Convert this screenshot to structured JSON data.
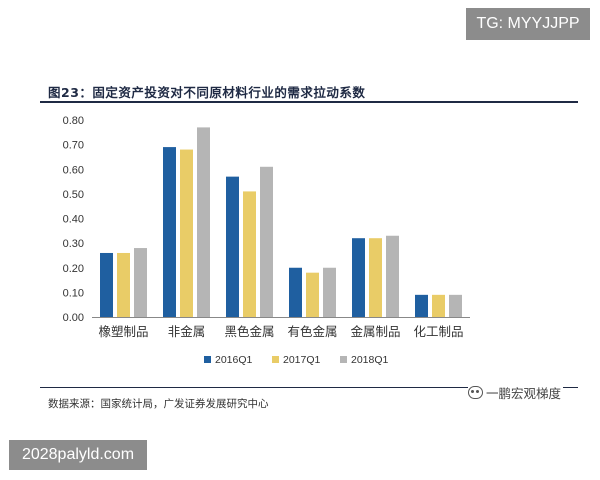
{
  "overlay": {
    "top_badge": "TG: MYYJJPP",
    "bottom_badge": "2028palyld.com"
  },
  "figure": {
    "title": "图23：固定资产投资对不同原材料行业的需求拉动系数",
    "source": "数据来源：国家统计局，广发证券发展研究中心",
    "watermark": "一鹏宏观梯度"
  },
  "colors": {
    "series": [
      "#1f5fa0",
      "#e9cc67",
      "#b5b5b5"
    ],
    "axis_text": "#333333",
    "axis_line": "#888888"
  },
  "chart_data": {
    "type": "bar",
    "title": "图23：固定资产投资对不同原材料行业的需求拉动系数",
    "xlabel": "",
    "ylabel": "",
    "ylim": [
      0,
      0.8
    ],
    "yticks": [
      "0.00",
      "0.10",
      "0.20",
      "0.30",
      "0.40",
      "0.50",
      "0.60",
      "0.70",
      "0.80"
    ],
    "grid": false,
    "legend_position": "bottom",
    "categories": [
      "橡塑制品",
      "非金属",
      "黑色金属",
      "有色金属",
      "金属制品",
      "化工制品"
    ],
    "series": [
      {
        "name": "2016Q1",
        "values": [
          0.26,
          0.69,
          0.57,
          0.2,
          0.32,
          0.09
        ]
      },
      {
        "name": "2017Q1",
        "values": [
          0.26,
          0.68,
          0.51,
          0.18,
          0.32,
          0.09
        ]
      },
      {
        "name": "2018Q1",
        "values": [
          0.28,
          0.77,
          0.61,
          0.2,
          0.33,
          0.09
        ]
      }
    ]
  }
}
